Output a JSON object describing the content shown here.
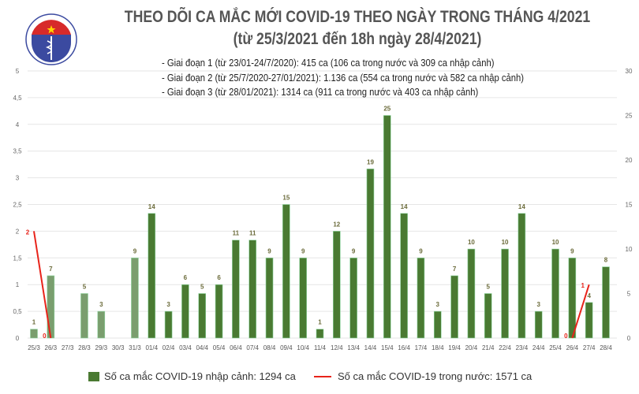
{
  "header": {
    "title": "THEO DÕI CA MẮC MỚI COVID-19 THEO NGÀY TRONG THÁNG 4/2021",
    "subtitle": "(từ 25/3/2021 đến 18h ngày 28/4/2021)",
    "logo_text": "BỘ Y TẾ · MINISTRY OF HEALTH",
    "notes": [
      "- Giai đoạn 1 (từ 23/01-24/7/2020): 415 ca (106 ca trong nước và 309 ca nhập cảnh)",
      "- Giai đoạn 2 (từ 25/7/2020-27/01/2021): 1.136 ca (554 ca trong nước và 582 ca nhập cảnh)",
      "- Giai đoạn 3 (từ 28/01/2021): 1314 ca (911 ca trong nước và 403 ca nhập cảnh)"
    ]
  },
  "chart_data": {
    "type": "bar+line",
    "categories": [
      "25/3",
      "26/3",
      "27/3",
      "28/3",
      "29/3",
      "30/3",
      "31/3",
      "01/4",
      "02/4",
      "03/4",
      "04/4",
      "05/4",
      "06/4",
      "07/4",
      "08/4",
      "09/4",
      "10/4",
      "11/4",
      "12/4",
      "13/4",
      "14/4",
      "15/4",
      "16/4",
      "17/4",
      "18/4",
      "19/4",
      "20/4",
      "21/4",
      "22/4",
      "23/4",
      "24/4",
      "25/4",
      "26/4",
      "27/4",
      "28/4"
    ],
    "series": [
      {
        "name": "Số ca mắc COVID-19 nhập cảnh: 1294 ca",
        "type": "bar",
        "axis": "right",
        "values": [
          1,
          7,
          null,
          5,
          3,
          null,
          9,
          14,
          3,
          6,
          5,
          6,
          11,
          11,
          9,
          15,
          9,
          1,
          12,
          9,
          19,
          25,
          14,
          9,
          3,
          7,
          10,
          5,
          10,
          14,
          3,
          10,
          9,
          4,
          8
        ],
        "colors": {
          "march": "#7a9e6e",
          "april": "#4a7a32"
        }
      },
      {
        "name": "Số ca mắc COVID-19 trong nước: 1571 ca",
        "type": "line",
        "axis": "left",
        "color": "#e8231a",
        "points": [
          {
            "x": "25/3",
            "y": 2
          },
          {
            "x": "26/3",
            "y": 0
          },
          {
            "x": "26/4",
            "y": 0
          },
          {
            "x": "27/4",
            "y": 1
          }
        ]
      }
    ],
    "left_axis": {
      "ylim": [
        0,
        5
      ],
      "ticks": [
        "0",
        "0,5",
        "1",
        "1,5",
        "2",
        "2,5",
        "3",
        "3,5",
        "4",
        "4,5",
        "5"
      ]
    },
    "right_axis": {
      "ylim": [
        0,
        30
      ],
      "ticks": [
        "0",
        "5",
        "10",
        "15",
        "20",
        "25",
        "30"
      ]
    },
    "grid": true,
    "legend": "bottom"
  }
}
